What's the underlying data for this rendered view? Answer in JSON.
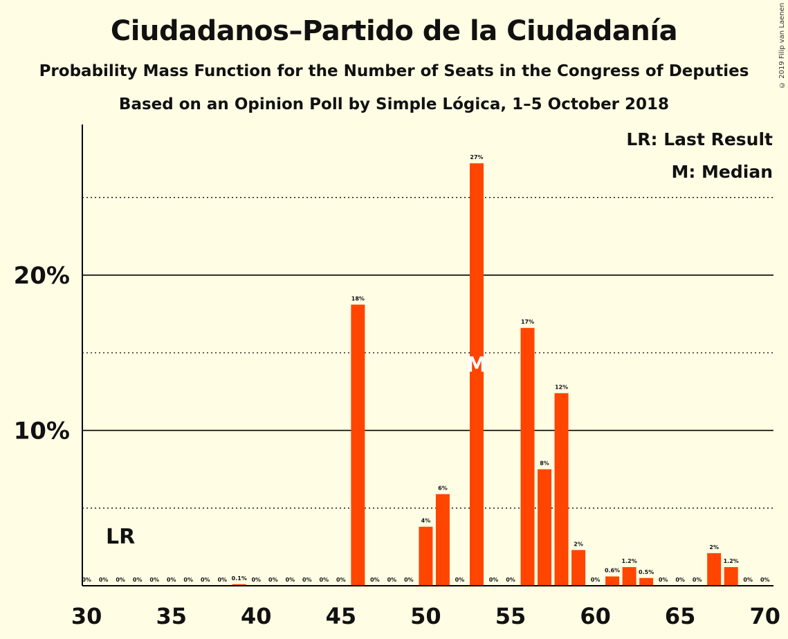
{
  "title": "Ciudadanos–Partido de la Ciudadanía",
  "subtitle": "Probability Mass Function for the Number of Seats in the Congress of Deputies",
  "subtitle2": "Based on an Opinion Poll by Simple Lógica, 1–5 October 2018",
  "copyright": "© 2019 Filip van Laenen",
  "legend": {
    "lr": "LR: Last Result",
    "m": "M: Median"
  },
  "lr_label": "LR",
  "median_label": "M",
  "colors": {
    "bar": "#ff4500",
    "background": "#fffde4",
    "axis": "#000000"
  },
  "chart_data": {
    "type": "bar",
    "x": [
      30,
      31,
      32,
      33,
      34,
      35,
      36,
      37,
      38,
      39,
      40,
      41,
      42,
      43,
      44,
      45,
      46,
      47,
      48,
      49,
      50,
      51,
      52,
      53,
      54,
      55,
      56,
      57,
      58,
      59,
      60,
      61,
      62,
      63,
      64,
      65,
      66,
      67,
      68,
      69,
      70
    ],
    "values": [
      0,
      0,
      0,
      0,
      0,
      0,
      0,
      0,
      0,
      0.1,
      0,
      0,
      0,
      0,
      0,
      0,
      18.1,
      0,
      0,
      0,
      3.8,
      5.9,
      0,
      27.2,
      0,
      0,
      16.6,
      7.5,
      12.4,
      2.3,
      0,
      0.6,
      1.2,
      0.5,
      0,
      0,
      0,
      2.1,
      1.2,
      0,
      0
    ],
    "labels": [
      "0%",
      "0%",
      "0%",
      "0%",
      "0%",
      "0%",
      "0%",
      "0%",
      "0%",
      "0.1%",
      "0%",
      "0%",
      "0%",
      "0%",
      "0%",
      "0%",
      "18%",
      "0%",
      "0%",
      "0%",
      "4%",
      "6%",
      "0%",
      "27%",
      "0%",
      "0%",
      "17%",
      "8%",
      "12%",
      "2%",
      "0%",
      "0.6%",
      "1.2%",
      "0.5%",
      "0%",
      "0%",
      "0%",
      "2%",
      "1.2%",
      "0%",
      "0%"
    ],
    "xticks": [
      30,
      35,
      40,
      45,
      50,
      55,
      60,
      65,
      70
    ],
    "xtick_labels": [
      "30",
      "35",
      "40",
      "45",
      "50",
      "55",
      "60",
      "65",
      "70"
    ],
    "yticks_major": [
      10,
      20
    ],
    "ytick_labels": [
      "10%",
      "20%"
    ],
    "yticks_minor": [
      5,
      15,
      25
    ],
    "ylim": [
      0,
      29.7
    ],
    "xlim": [
      29.75,
      70.5
    ],
    "last_result": 32,
    "median": 53
  }
}
